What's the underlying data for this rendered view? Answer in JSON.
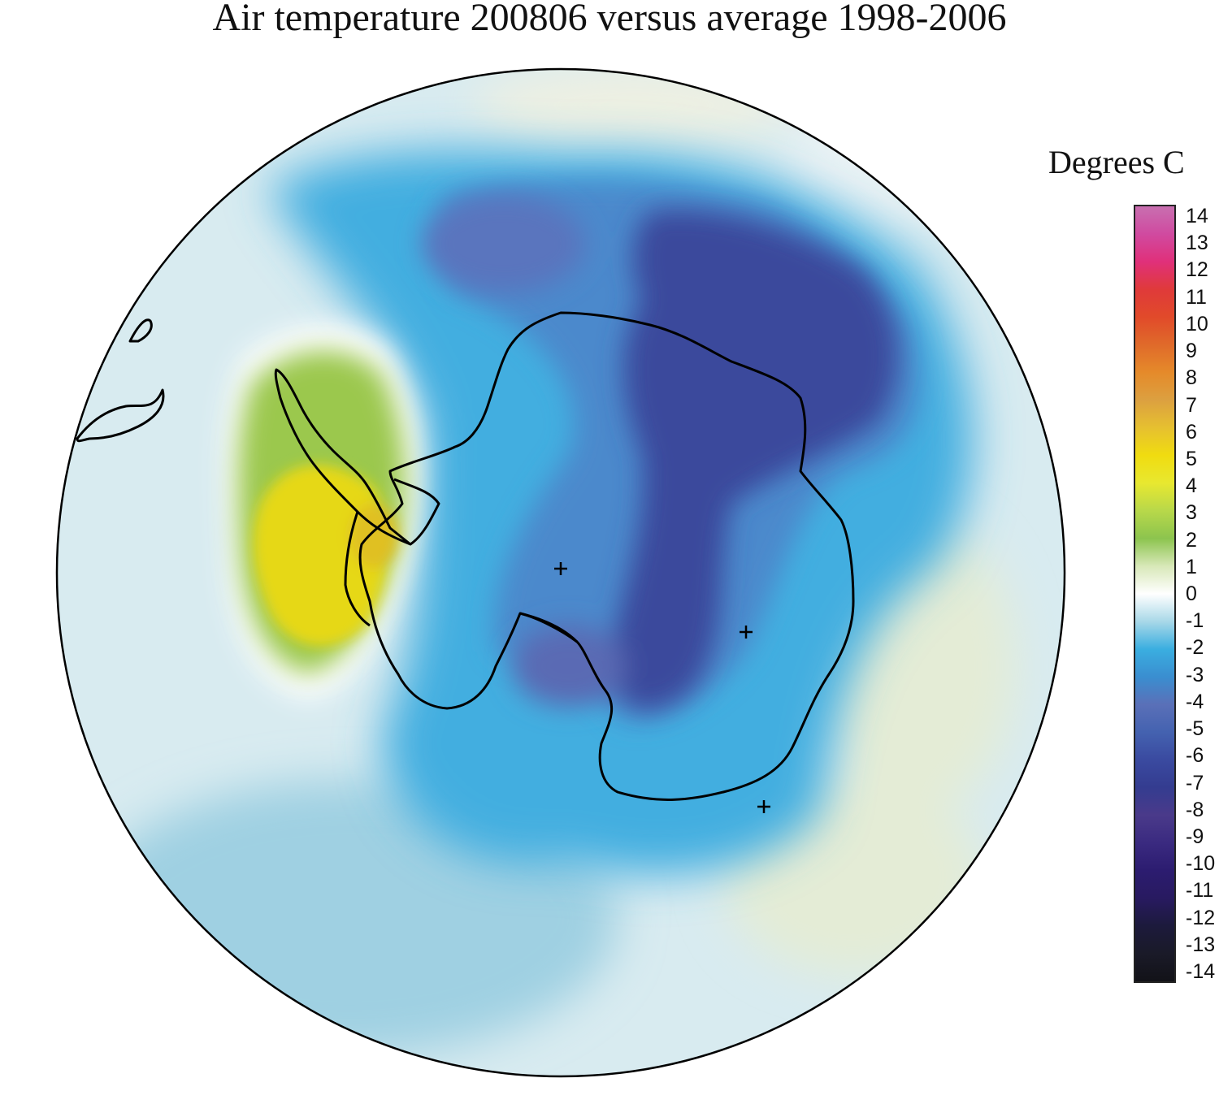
{
  "title": "Air temperature 200806 versus average 1998-2006",
  "legend": {
    "title": "Degrees C",
    "ticks": [
      "14",
      "13",
      "12",
      "11",
      "10",
      "9",
      "8",
      "7",
      "6",
      "5",
      "4",
      "3",
      "2",
      "1",
      "0",
      "-1",
      "-2",
      "-3",
      "-4",
      "-5",
      "-6",
      "-7",
      "-8",
      "-9",
      "-10",
      "-11",
      "-12",
      "-13",
      "-14"
    ],
    "colors": {
      "14": "#c86fb0",
      "13": "#d04aa0",
      "12": "#e0307a",
      "11": "#e03a3a",
      "10": "#e14a2a",
      "9": "#e06a2a",
      "8": "#e58a2a",
      "7": "#dca040",
      "6": "#e6c030",
      "5": "#f0dc10",
      "4": "#e8e830",
      "3": "#b8d84a",
      "2": "#8cc44e",
      "1": "#d8e8b8",
      "0": "#ffffff",
      "-1": "#a8d8e8",
      "-2": "#3aaee0",
      "-3": "#3a8ed0",
      "-4": "#5a70b8",
      "-5": "#4462b0",
      "-6": "#3a4aa0",
      "-7": "#343c90",
      "-8": "#4a3a8a",
      "-9": "#3a2a80",
      "-10": "#2c1c70",
      "-11": "#281a60",
      "-12": "#1c1a3c",
      "-13": "#1a1a28",
      "-14": "#121218"
    }
  },
  "map": {
    "projection": "south polar stereographic",
    "anomaly_regions": [
      {
        "name": "antarctic-peninsula-warm",
        "value": 4
      },
      {
        "name": "east-antarctica-cold",
        "value": -7
      },
      {
        "name": "west-antarctica-cold",
        "value": -3
      }
    ]
  }
}
